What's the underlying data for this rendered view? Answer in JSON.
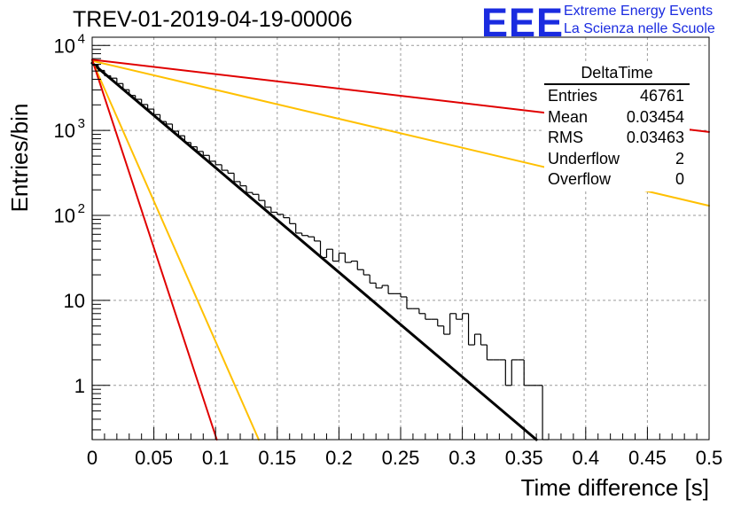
{
  "header": {
    "title": "TREV-01-2019-04-19-00006",
    "logo_text": "EEE",
    "logo_line1": "Extreme Energy Events",
    "logo_line2": "La Scienza nelle Scuole"
  },
  "stats_box": {
    "name": "DeltaTime",
    "rows": [
      {
        "label": "Entries",
        "value": "46761"
      },
      {
        "label": "Mean",
        "value": "0.03454"
      },
      {
        "label": "RMS",
        "value": "0.03463"
      },
      {
        "label": "Underflow",
        "value": "2"
      },
      {
        "label": "Overflow",
        "value": "0"
      }
    ]
  },
  "chart_data": {
    "type": "histogram",
    "xlabel": "Time difference [s]",
    "ylabel": "Entries/bin",
    "xlim": [
      0,
      0.5
    ],
    "ylim": [
      0.23,
      12500
    ],
    "y_log": true,
    "grid": true,
    "x_ticks": [
      "0",
      "0.05",
      "0.1",
      "0.15",
      "0.2",
      "0.25",
      "0.3",
      "0.35",
      "0.4",
      "0.45",
      "0.5"
    ],
    "x_tick_values": [
      0,
      0.05,
      0.1,
      0.15,
      0.2,
      0.25,
      0.3,
      0.35,
      0.4,
      0.45,
      0.5
    ],
    "y_ticks": [
      {
        "value": 1,
        "label": "1"
      },
      {
        "value": 10,
        "label": "10"
      },
      {
        "value": 100,
        "label": "10",
        "exp": "2"
      },
      {
        "value": 1000,
        "label": "10",
        "exp": "3"
      },
      {
        "value": 10000,
        "label": "10",
        "exp": "4"
      }
    ],
    "bin_width": 0.005,
    "histogram_counts": [
      5871,
      5082,
      4400,
      4122,
      3562,
      3014,
      2581,
      2325,
      2019,
      1783,
      1536,
      1272,
      1189,
      980,
      866,
      721,
      642,
      566,
      509,
      434,
      395,
      340,
      314,
      250,
      223,
      186,
      177,
      150,
      125,
      109,
      103,
      94,
      80,
      62,
      58,
      56,
      50,
      32,
      40,
      29,
      36,
      28,
      29,
      23,
      20,
      16,
      14,
      15,
      12,
      12,
      11,
      8,
      8,
      7,
      6,
      6,
      5,
      4,
      7,
      6,
      7,
      3,
      4,
      3,
      2,
      2,
      2,
      1,
      2,
      2,
      1,
      1,
      1,
      0
    ],
    "fits": [
      {
        "color": "#000000",
        "width": 3,
        "points": [
          [
            0,
            6200
          ],
          [
            0.36,
            0.2
          ]
        ]
      },
      {
        "color": "#ffc000",
        "width": 2,
        "points": [
          [
            0,
            6600
          ],
          [
            0.5,
            130
          ]
        ]
      },
      {
        "color": "#ffc000",
        "width": 2,
        "points": [
          [
            0,
            6600
          ],
          [
            0.135,
            0.2
          ]
        ]
      },
      {
        "color": "#e00000",
        "width": 2,
        "points": [
          [
            0,
            6800
          ],
          [
            0.5,
            960
          ]
        ]
      },
      {
        "color": "#e00000",
        "width": 2,
        "points": [
          [
            0,
            6800
          ],
          [
            0.101,
            0.23
          ]
        ]
      }
    ]
  }
}
